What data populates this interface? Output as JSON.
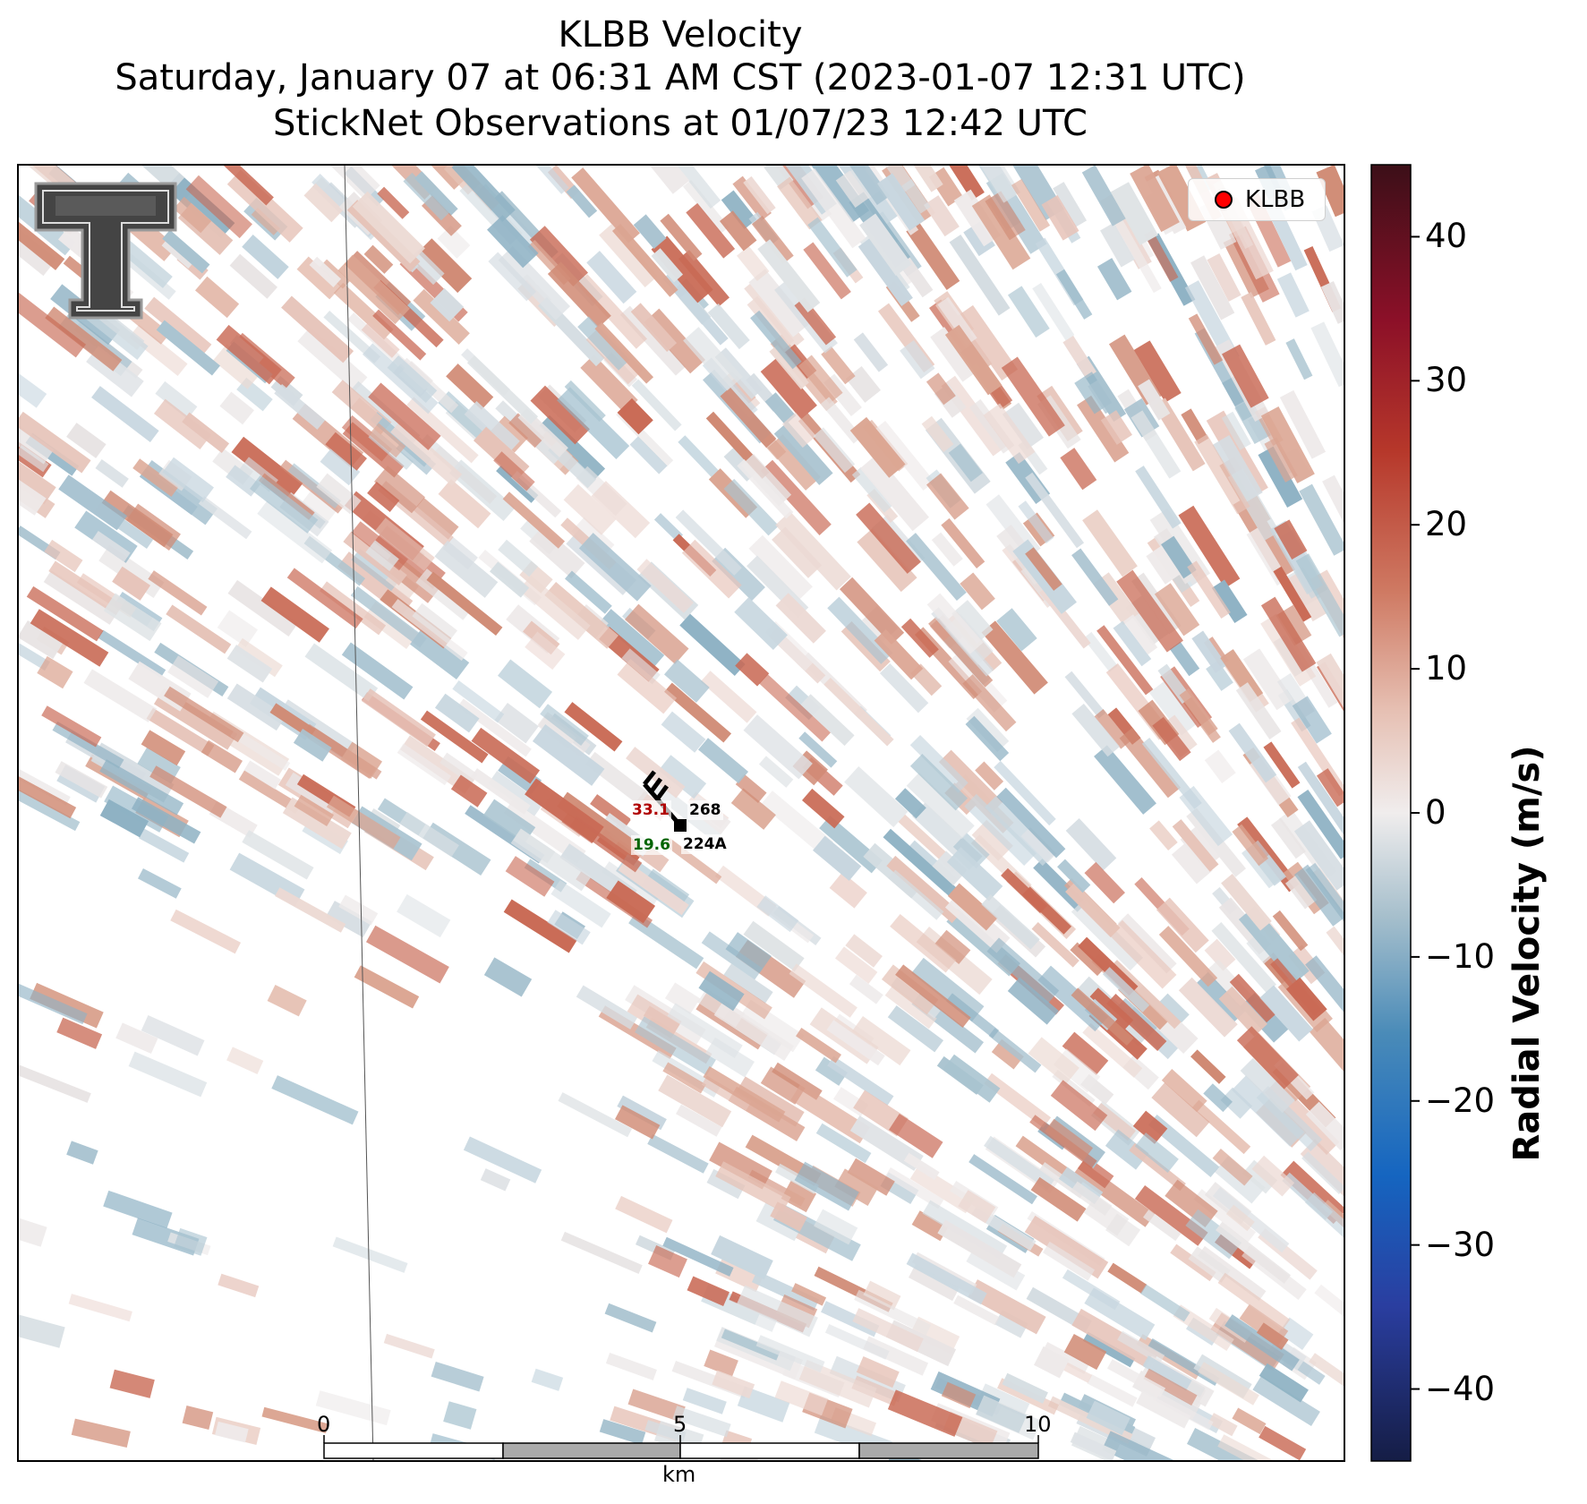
{
  "title": {
    "line1": "KLBB Velocity",
    "line2": "Saturday, January 07 at 06:31 AM CST (2023-01-07 12:31 UTC)",
    "line3": "StickNet Observations at 01/07/23 12:42 UTC"
  },
  "legend": {
    "label": "KLBB",
    "marker_color": "#ff0000"
  },
  "colorbar": {
    "label": "Radial Velocity (m/s)",
    "min": -45,
    "max": 45,
    "ticks": [
      "40",
      "30",
      "20",
      "10",
      "0",
      "−10",
      "−20",
      "−30",
      "−40"
    ],
    "tick_values": [
      40,
      30,
      20,
      10,
      0,
      -10,
      -20,
      -30,
      -40
    ],
    "colors": {
      "min": "#151d45",
      "neg_mid": "#3a7fb8",
      "neg_light": "#c7d6df",
      "zero": "#f0eded",
      "pos_light": "#e6bfb2",
      "pos_mid": "#c96a55",
      "pos_dark": "#a82020",
      "max": "#3c0f18"
    }
  },
  "station": {
    "id": "224A",
    "value_red": "33.1",
    "value_black": "268",
    "value_green": "19.6",
    "colors": {
      "red": "#b00000",
      "black": "#000000",
      "green": "#006400"
    }
  },
  "scale_bar": {
    "ticks": [
      "0",
      "5",
      "10"
    ],
    "unit": "km"
  },
  "logo": {
    "name": "Texas Tech Double T"
  }
}
